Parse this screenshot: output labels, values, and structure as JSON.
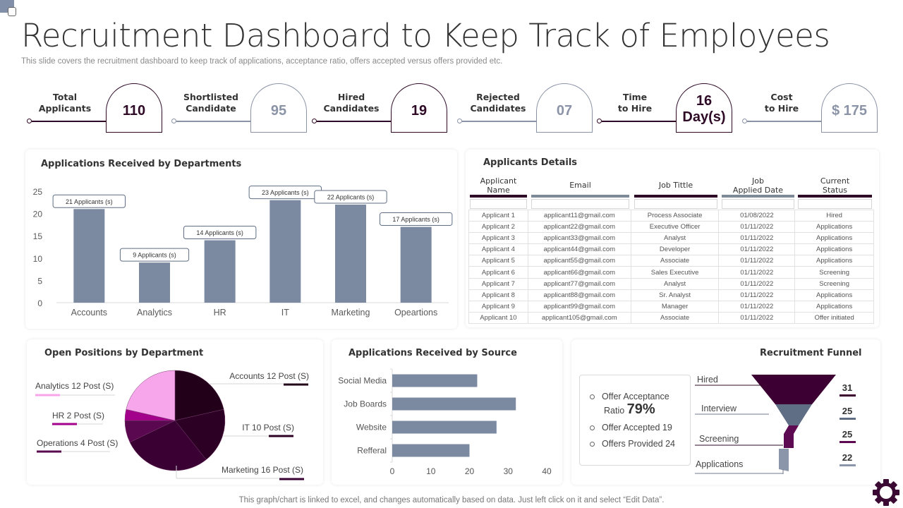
{
  "header": {
    "title": "Recruitment Dashboard to Keep Track of Employees",
    "subtitle": "This slide covers the recruitment dashboard to keep track of applications, acceptance ratio, offers accepted versus offers provided etc."
  },
  "kpis": [
    {
      "label_line1": "Total",
      "label_line2": "Applicants",
      "value": "110",
      "style": "dark"
    },
    {
      "label_line1": "Shortlisted",
      "label_line2": "Candidate",
      "value": "95",
      "style": "light"
    },
    {
      "label_line1": "Hired",
      "label_line2": "Candidates",
      "value": "19",
      "style": "dark"
    },
    {
      "label_line1": "Rejected",
      "label_line2": "Candidates",
      "value": "07",
      "style": "light"
    },
    {
      "label_line1": "Time",
      "label_line2": "to Hire",
      "value_line1": "16",
      "value_line2": "Day(s)",
      "style": "dark"
    },
    {
      "label_line1": "Cost",
      "label_line2": "to Hire",
      "value": "$ 175",
      "style": "light"
    }
  ],
  "colors": {
    "dark_plum": "#2e0a26",
    "slate": "#7c8aa1",
    "pink": "#f7a6ec",
    "magenta": "#a3008c"
  },
  "applicants_details": {
    "title": "Applicants Details",
    "columns": [
      {
        "line1": "Applicant",
        "line2": "Name"
      },
      {
        "line1": "Email",
        "line2": ""
      },
      {
        "line1": "Job Tittle",
        "line2": ""
      },
      {
        "line1": "Job",
        "line2": "Applied Date"
      },
      {
        "line1": "Current",
        "line2": "Status"
      }
    ],
    "rows": [
      [
        "Applicant 1",
        "applicant11@gmail.com",
        "Process Associate",
        "01/08/2022",
        "Hired"
      ],
      [
        "Applicant 2",
        "applicant22@gmail.com",
        "Executive Officer",
        "01/11/2022",
        "Applications"
      ],
      [
        "Applicant 3",
        "applicant33@gmail.com",
        "Analyst",
        "01/11/2022",
        "Applications"
      ],
      [
        "Applicant 4",
        "applicant44@gmail.com",
        "Developer",
        "01/11/2022",
        "Applications"
      ],
      [
        "Applicant 5",
        "applicant55@gmail.com",
        "Associate",
        "01/11/2022",
        "Applications"
      ],
      [
        "Applicant 6",
        "applicant66@gmail.com",
        "Sales Executive",
        "01/11/2022",
        "Screening"
      ],
      [
        "Applicant 7",
        "applicant77@gmail.com",
        "Analyst",
        "01/11/2022",
        "Screening"
      ],
      [
        "Applicant 8",
        "applicant88@gmail.com",
        "Sr. Analyst",
        "01/11/2022",
        "Applications"
      ],
      [
        "Applicant 9",
        "applicant99@gmail.com",
        "Manager",
        "01/11/2022",
        "Applications"
      ],
      [
        "Applicant 10",
        "applicant105@gmail.com",
        "Associate",
        "01/11/2022",
        "Offer initiated"
      ]
    ]
  },
  "offers": {
    "acceptance_label_line1": "Offer Acceptance",
    "acceptance_label_line2": "Ratio",
    "acceptance_ratio": "79%",
    "accepted": "Offer Accepted 19",
    "provided": "Offers Provided 24"
  },
  "footer": {
    "note": "This graph/chart is linked to excel,  and changes automatically based on data. Just left click on it and select “Edit Data”."
  },
  "chart_data": [
    {
      "type": "bar",
      "title": "Applications Received by Departments",
      "categories": [
        "Accounts",
        "Analytics",
        "HR",
        "IT",
        "Marketing",
        "Opeartions"
      ],
      "values": [
        21,
        9,
        14,
        23,
        22,
        17
      ],
      "data_labels": [
        "21 Applicants (s)",
        "9 Applicants (s)",
        "14 Applicants (s)",
        "23 Applicants (s)",
        "22 Applicants (s)",
        "17 Applicants (s)"
      ],
      "yticks": [
        0,
        5,
        10,
        15,
        20,
        25
      ],
      "ylim": [
        0,
        25
      ],
      "xlabel": "",
      "ylabel": "",
      "grid": false
    },
    {
      "type": "pie",
      "title": "Open Positions by Department",
      "slices": [
        {
          "label": "Accounts 12 Post (S)",
          "name": "Accounts",
          "value": 12,
          "color": "#22001a"
        },
        {
          "label": "IT 10 Post (S)",
          "name": "IT",
          "value": 10,
          "color": "#2c0025"
        },
        {
          "label": "Marketing 16 Post (S)",
          "name": "Marketing",
          "value": 16,
          "color": "#3b0033"
        },
        {
          "label": "Operations 4 Post (S)",
          "name": "Operations",
          "value": 4,
          "color": "#5a0850"
        },
        {
          "label": "HR 2 Post (S)",
          "name": "HR",
          "value": 2,
          "color": "#a3008c"
        },
        {
          "label": "Analytics 12 Post (S)",
          "name": "Analytics",
          "value": 12,
          "color": "#f7a6ec"
        }
      ]
    },
    {
      "type": "bar",
      "orientation": "horizontal",
      "title": "Applications Received by Source",
      "categories": [
        "Social Media",
        "Job Boards",
        "Website",
        "Refferal"
      ],
      "values": [
        22,
        32,
        27,
        20
      ],
      "xticks": [
        0,
        10,
        20,
        30,
        40
      ],
      "xlim": [
        0,
        40
      ],
      "grid": false
    },
    {
      "type": "bar",
      "subtype": "funnel",
      "title": "Recruitment Funnel",
      "categories": [
        "Hired",
        "Interview",
        "Screening",
        "Applications"
      ],
      "values": [
        31,
        25,
        25,
        22
      ],
      "colors": [
        "#3d0033",
        "#5f6e85",
        "#5d0a52",
        "#8b96aa"
      ]
    }
  ]
}
